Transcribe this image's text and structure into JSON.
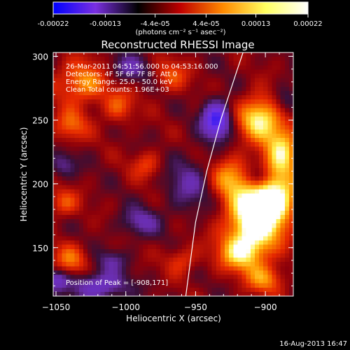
{
  "colorbar": {
    "ticks": [
      "-0.00022",
      "-0.00013",
      "-4.4e-05",
      "4.4e-05",
      "0.00013",
      "0.00022"
    ],
    "unit_label": "(photons cm⁻² s⁻¹ asec⁻²)",
    "stops": [
      "#0000ff",
      "#7a2fe0",
      "#000000",
      "#c00000",
      "#ff8a00",
      "#ffff60",
      "#ffffff"
    ]
  },
  "timestamp": "16-Aug-2013 16:47",
  "chart_data": {
    "type": "heatmap",
    "title": "Reconstructed RHESSI Image",
    "xlabel": "Heliocentric X (arcsec)",
    "ylabel": "Heliocentric Y (arcsec)",
    "xlim": [
      -1052,
      -880
    ],
    "ylim": [
      112,
      303
    ],
    "xticks": [
      -1050,
      -1000,
      -950,
      -900
    ],
    "yticks": [
      150,
      200,
      250,
      300
    ],
    "xtick_labels": [
      "−1050",
      "−1000",
      "−950",
      "−900"
    ],
    "ytick_labels": [
      "150",
      "200",
      "250",
      "300"
    ],
    "annotations": [
      "26-Mar-2011 04:51:56.000 to 04:53:16.000",
      "Detectors: 4F 5F 6F 7F 8F, Att 0",
      "Energy Range: 25.0 - 50.0 keV",
      "Clean    Total counts: 1.96E+03"
    ],
    "peak_label": "Position of Peak = [-908,171]",
    "peak": [
      -908,
      171
    ],
    "value_range": [
      -0.00022,
      0.00022
    ],
    "limb_curve": [
      [
        -957,
        112
      ],
      [
        -950,
        170
      ],
      [
        -942,
        210
      ],
      [
        -932,
        250
      ],
      [
        -920,
        290
      ],
      [
        -916,
        303
      ]
    ],
    "sources": [
      {
        "x": -908,
        "y": 171,
        "sx": 14,
        "sy": 18,
        "v": 0.00022
      },
      {
        "x": -893,
        "y": 190,
        "sx": 12,
        "sy": 14,
        "v": 0.00016
      },
      {
        "x": -905,
        "y": 252,
        "sx": 10,
        "sy": 12,
        "v": 0.00017
      },
      {
        "x": -888,
        "y": 228,
        "sx": 9,
        "sy": 16,
        "v": 0.00015
      },
      {
        "x": -925,
        "y": 205,
        "sx": 10,
        "sy": 12,
        "v": 0.00011
      },
      {
        "x": -918,
        "y": 145,
        "sx": 12,
        "sy": 10,
        "v": 0.00012
      },
      {
        "x": -900,
        "y": 125,
        "sx": 10,
        "sy": 8,
        "v": 0.0001
      },
      {
        "x": -1030,
        "y": 280,
        "sx": 14,
        "sy": 12,
        "v": 0.00012
      },
      {
        "x": -1040,
        "y": 245,
        "sx": 9,
        "sy": 9,
        "v": 9e-05
      },
      {
        "x": -1005,
        "y": 260,
        "sx": 8,
        "sy": 9,
        "v": 8e-05
      },
      {
        "x": -1045,
        "y": 185,
        "sx": 8,
        "sy": 8,
        "v": 8e-05
      },
      {
        "x": -1040,
        "y": 140,
        "sx": 9,
        "sy": 9,
        "v": 9e-05
      },
      {
        "x": -985,
        "y": 215,
        "sx": 8,
        "sy": 8,
        "v": 7e-05
      },
      {
        "x": -960,
        "y": 140,
        "sx": 8,
        "sy": 8,
        "v": 7e-05
      },
      {
        "x": -968,
        "y": 285,
        "sx": 9,
        "sy": 9,
        "v": 8e-05
      },
      {
        "x": -935,
        "y": 250,
        "sx": 7,
        "sy": 10,
        "v": -0.0002
      },
      {
        "x": -1020,
        "y": 120,
        "sx": 14,
        "sy": 8,
        "v": -0.00012
      },
      {
        "x": -1050,
        "y": 125,
        "sx": 6,
        "sy": 6,
        "v": -0.0001
      },
      {
        "x": -1000,
        "y": 290,
        "sx": 12,
        "sy": 8,
        "v": -8e-05
      },
      {
        "x": -955,
        "y": 200,
        "sx": 12,
        "sy": 16,
        "v": -7e-05
      },
      {
        "x": -990,
        "y": 170,
        "sx": 10,
        "sy": 8,
        "v": -8e-05
      },
      {
        "x": -905,
        "y": 205,
        "sx": 6,
        "sy": 6,
        "v": -9e-05
      },
      {
        "x": -885,
        "y": 265,
        "sx": 6,
        "sy": 8,
        "v": -7e-05
      },
      {
        "x": -1045,
        "y": 215,
        "sx": 7,
        "sy": 7,
        "v": -7e-05
      },
      {
        "x": -1010,
        "y": 140,
        "sx": 8,
        "sy": 6,
        "v": -6e-05
      }
    ]
  }
}
